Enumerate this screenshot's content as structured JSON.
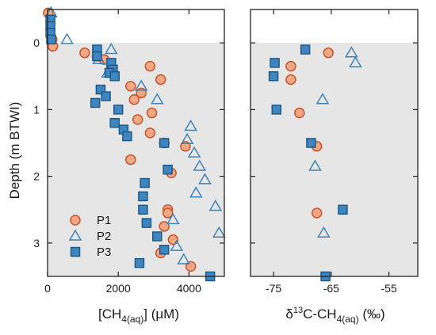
{
  "colors": {
    "p1_fill": "#F2A785",
    "p1_stroke": "#C8552A",
    "p2_stroke": "#3F84B8",
    "p3_fill": "#3F86C0",
    "p3_stroke": "#1E5A88",
    "shade": "#E6E6E6",
    "axis": "#222222"
  },
  "chart_data": [
    {
      "type": "scatter",
      "xlabel": "[CH4(aq)] (μM)",
      "xlabel_parts": {
        "main": "[CH",
        "sub": "4(aq)",
        "tail": "] (μM)"
      },
      "ylabel": "Depth (m BTWI)",
      "xlim": [
        0,
        5000
      ],
      "ylim": [
        3.5,
        -0.5
      ],
      "xticks": [
        0,
        2000,
        4000
      ],
      "xtick_labels": [
        "0",
        "2000",
        "4000"
      ],
      "yticks": [
        0,
        1,
        2,
        3
      ],
      "ytick_labels": [
        "0",
        "1",
        "2",
        "3"
      ],
      "shaded_region": "depth >= 0",
      "legend_position": "bottom-left",
      "series": [
        {
          "name": "P1",
          "marker": "circle",
          "x": [
            20,
            130,
            150,
            1050,
            1400,
            1600,
            2350,
            2450,
            2650,
            2900,
            2950,
            3200,
            2550,
            2900,
            3900,
            3300,
            3500,
            2350,
            3400,
            3400,
            3300,
            3550,
            3200,
            4050
          ],
          "y": [
            -0.45,
            -0.05,
            0.05,
            0.15,
            0.2,
            0.25,
            0.65,
            0.85,
            0.75,
            0.35,
            1.05,
            0.55,
            1.15,
            1.35,
            1.55,
            1.5,
            1.95,
            1.75,
            2.5,
            2.55,
            2.75,
            2.95,
            3.15,
            3.35
          ]
        },
        {
          "name": "P2",
          "marker": "triangle",
          "x": [
            100,
            550,
            1450,
            1800,
            1700,
            2650,
            3100,
            4050,
            3950,
            4150,
            4300,
            4450,
            4200,
            4750,
            3550,
            4850,
            3650,
            3850
          ],
          "y": [
            -0.45,
            -0.05,
            0.25,
            0.1,
            0.45,
            0.65,
            0.85,
            1.25,
            1.45,
            1.65,
            1.85,
            2.05,
            2.25,
            2.45,
            2.65,
            2.85,
            3.05,
            3.25
          ]
        },
        {
          "name": "P3",
          "marker": "square",
          "x": [
            80,
            80,
            80,
            100,
            1400,
            1400,
            1800,
            1850,
            1750,
            1900,
            1500,
            1650,
            1350,
            2000,
            1900,
            2150,
            2250,
            3300,
            3400,
            2750,
            2700,
            2700,
            2800,
            3100,
            3300,
            2600,
            4600
          ],
          "y": [
            -0.35,
            -0.25,
            -0.15,
            -0.05,
            0.1,
            0.2,
            0.3,
            0.4,
            0.45,
            0.5,
            0.7,
            0.8,
            0.9,
            1.0,
            1.2,
            1.3,
            1.4,
            1.5,
            1.9,
            2.1,
            2.3,
            2.5,
            2.7,
            2.9,
            3.1,
            3.3,
            3.5
          ]
        }
      ]
    },
    {
      "type": "scatter",
      "xlabel": "δ13C-CH4(aq) (‰)",
      "xlabel_parts": {
        "main": "δ",
        "sup": "13",
        "mid": "C-CH",
        "sub": "4(aq)",
        "tail": " (‰)"
      },
      "ylabel": "",
      "xlim": [
        -79,
        -50
      ],
      "ylim": [
        3.5,
        -0.5
      ],
      "xticks": [
        -75,
        -65,
        -55
      ],
      "xtick_labels": [
        "-75",
        "-65",
        "-55"
      ],
      "shaded_region": "depth >= 0",
      "series": [
        {
          "name": "P1",
          "marker": "circle",
          "x": [
            -65.5,
            -72.0,
            -72.0,
            -70.5,
            -67.5,
            -67.5
          ],
          "y": [
            0.15,
            0.35,
            0.55,
            1.05,
            1.55,
            2.55
          ]
        },
        {
          "name": "P2",
          "marker": "triangle",
          "x": [
            -61.5,
            -60.8,
            -66.5,
            -67.8,
            -66.3
          ],
          "y": [
            0.15,
            0.3,
            0.85,
            1.85,
            2.85
          ]
        },
        {
          "name": "P3",
          "marker": "square",
          "x": [
            -69.5,
            -74.8,
            -75.0,
            -74.5,
            -68.5,
            -63.0,
            -66.0
          ],
          "y": [
            0.1,
            0.3,
            0.5,
            1.0,
            1.5,
            2.5,
            3.5
          ]
        }
      ]
    }
  ]
}
